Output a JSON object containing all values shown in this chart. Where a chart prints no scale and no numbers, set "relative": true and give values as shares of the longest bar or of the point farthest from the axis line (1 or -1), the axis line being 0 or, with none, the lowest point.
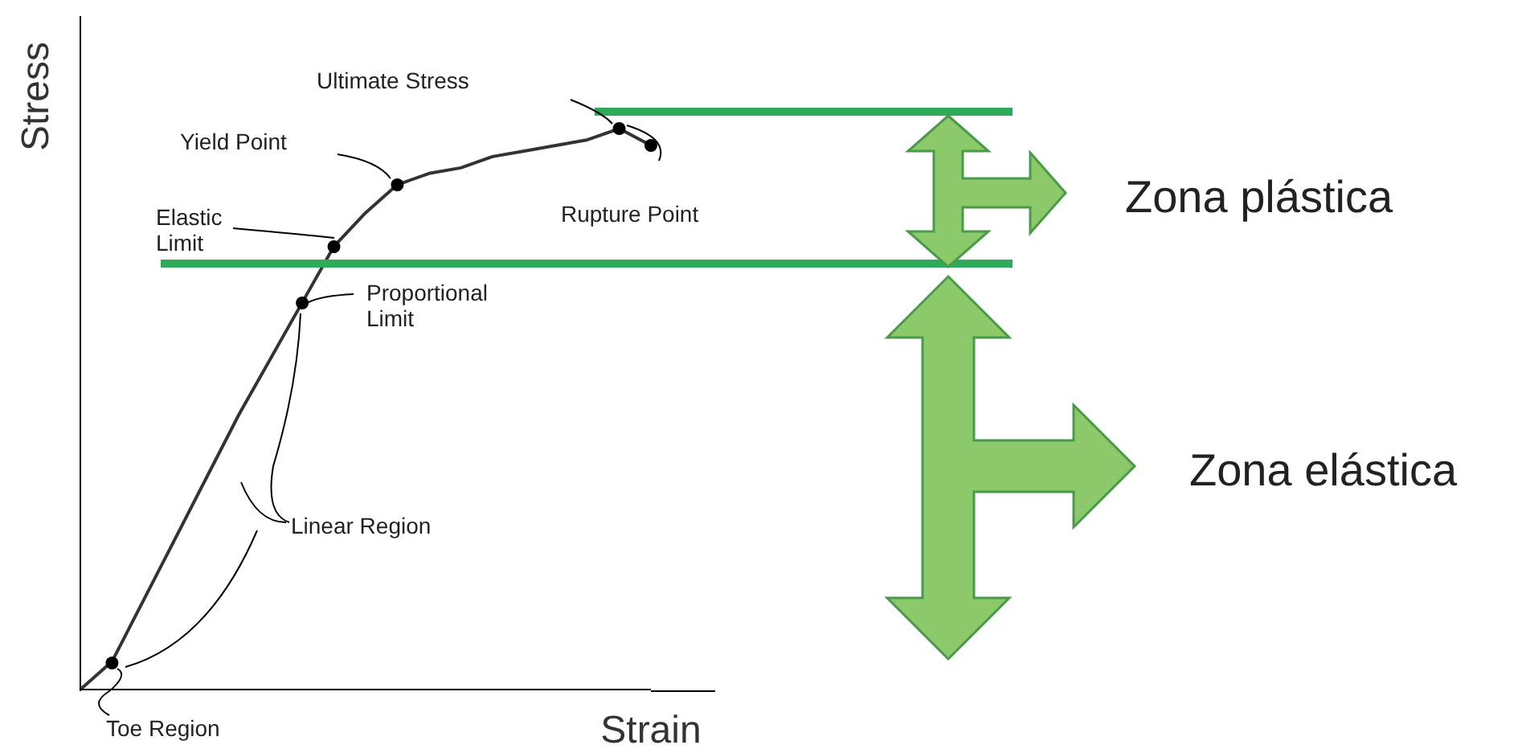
{
  "chart_data": {
    "type": "line",
    "relative": true,
    "xlabel": "Strain",
    "ylabel": "Stress",
    "categories": [
      null,
      null,
      null,
      null,
      null,
      null,
      null,
      null,
      null,
      null,
      null,
      null,
      null,
      null,
      null,
      null,
      null,
      null,
      null
    ],
    "series": [
      {
        "type": "line",
        "color": "#333333",
        "marker": "none",
        "values": [
          0,
          0.05,
          0.16,
          0.27,
          0.38,
          0.49,
          0.59,
          0.69,
          0.79,
          0.85,
          0.9,
          0.92,
          0.93,
          0.95,
          0.96,
          0.97,
          0.98,
          1,
          0.97
        ]
      }
    ],
    "ref_lines": [
      {
        "axis": "y",
        "value": 1.03,
        "color": "#2eaa5a"
      },
      {
        "axis": "y",
        "value": 0.76,
        "color": "#2eaa5a"
      }
    ],
    "annotations": [
      "Ultimate Stress",
      "Yield Point",
      "Elastic Limit",
      "Proportional Limit",
      "Rupture Point",
      "Linear Region",
      "Toe Region",
      "Zona plástica",
      "Zona elástica"
    ]
  }
}
